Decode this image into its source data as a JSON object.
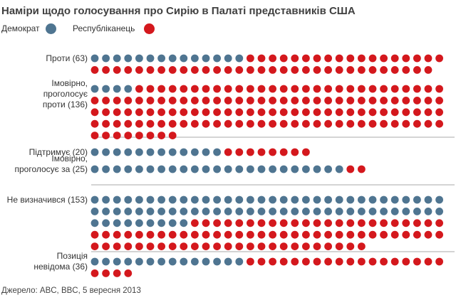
{
  "title": "Наміри щодо голосування про Сирію в Палаті представників США",
  "legend": [
    {
      "label": "Демократ",
      "color": "#4f7591"
    },
    {
      "label": "Республіканець",
      "color": "#d4181d"
    }
  ],
  "source": "Джерело: ABC, BBC, 5 вересня 2013",
  "chart_data": {
    "type": "dot-matrix",
    "title": "Наміри щодо голосування про Сирію в Палаті представників США",
    "dots_per_row": 32,
    "series_colors": {
      "democrat": "#4f7591",
      "republican": "#d4181d"
    },
    "groups": [
      {
        "label_lines": [
          "Проти (63)"
        ],
        "total": 63,
        "democrat": 14,
        "republican": 49
      },
      {
        "label_lines": [
          "Імовірно,",
          "проголосує",
          "проти (136)"
        ],
        "total": 136,
        "democrat": 4,
        "republican": 132
      },
      {
        "label_lines": [
          "Підтримує (20)"
        ],
        "total": 20,
        "democrat": 12,
        "republican": 8
      },
      {
        "label_lines": [
          "Імовірно,",
          "проголосує за (25)"
        ],
        "total": 25,
        "democrat": 23,
        "republican": 2
      },
      {
        "label_lines": [
          "Не визначився (153)"
        ],
        "total": 153,
        "democrat": 73,
        "republican": 80
      },
      {
        "label_lines": [
          "Позиція",
          "невідома (36)"
        ],
        "total": 36,
        "democrat": 14,
        "republican": 22
      }
    ]
  }
}
